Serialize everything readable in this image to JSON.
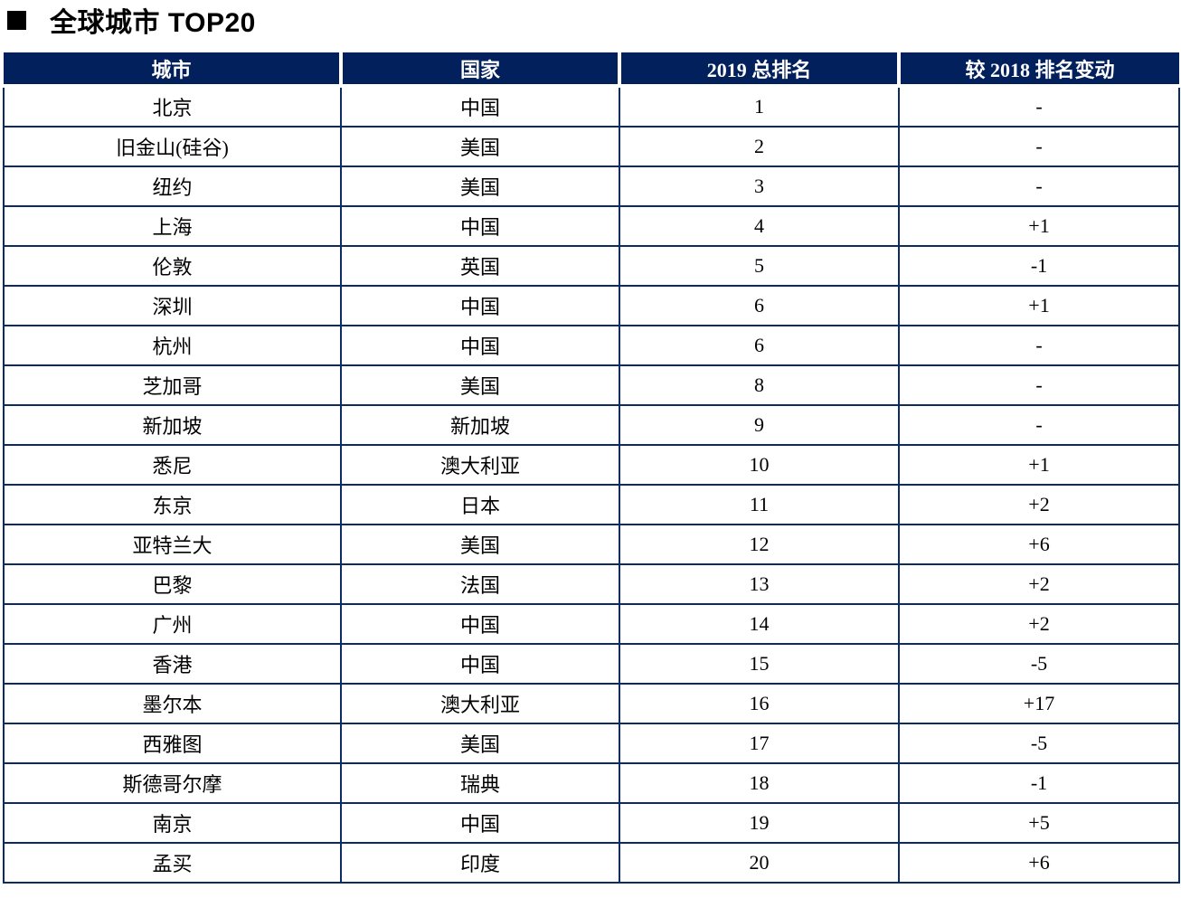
{
  "title": {
    "bullet": "■",
    "text": "全球城市 TOP20"
  },
  "colors": {
    "header_bg": "#02215C",
    "table_border": "#0C2A63",
    "header_text": "#FFFFFF",
    "body_text": "#000000"
  },
  "table": {
    "headers": [
      "城市",
      "国家",
      "2019 总排名",
      "较 2018 排名变动"
    ],
    "rows": [
      [
        "北京",
        "中国",
        "1",
        "-"
      ],
      [
        "旧金山(硅谷)",
        "美国",
        "2",
        "-"
      ],
      [
        "纽约",
        "美国",
        "3",
        "-"
      ],
      [
        "上海",
        "中国",
        "4",
        "+1"
      ],
      [
        "伦敦",
        "英国",
        "5",
        "-1"
      ],
      [
        "深圳",
        "中国",
        "6",
        "+1"
      ],
      [
        "杭州",
        "中国",
        "6",
        "-"
      ],
      [
        "芝加哥",
        "美国",
        "8",
        "-"
      ],
      [
        "新加坡",
        "新加坡",
        "9",
        "-"
      ],
      [
        "悉尼",
        "澳大利亚",
        "10",
        "+1"
      ],
      [
        "东京",
        "日本",
        "11",
        "+2"
      ],
      [
        "亚特兰大",
        "美国",
        "12",
        "+6"
      ],
      [
        "巴黎",
        "法国",
        "13",
        "+2"
      ],
      [
        "广州",
        "中国",
        "14",
        "+2"
      ],
      [
        "香港",
        "中国",
        "15",
        "-5"
      ],
      [
        "墨尔本",
        "澳大利亚",
        "16",
        "+17"
      ],
      [
        "西雅图",
        "美国",
        "17",
        "-5"
      ],
      [
        "斯德哥尔摩",
        "瑞典",
        "18",
        "-1"
      ],
      [
        "南京",
        "中国",
        "19",
        "+5"
      ],
      [
        "孟买",
        "印度",
        "20",
        "+6"
      ]
    ]
  }
}
